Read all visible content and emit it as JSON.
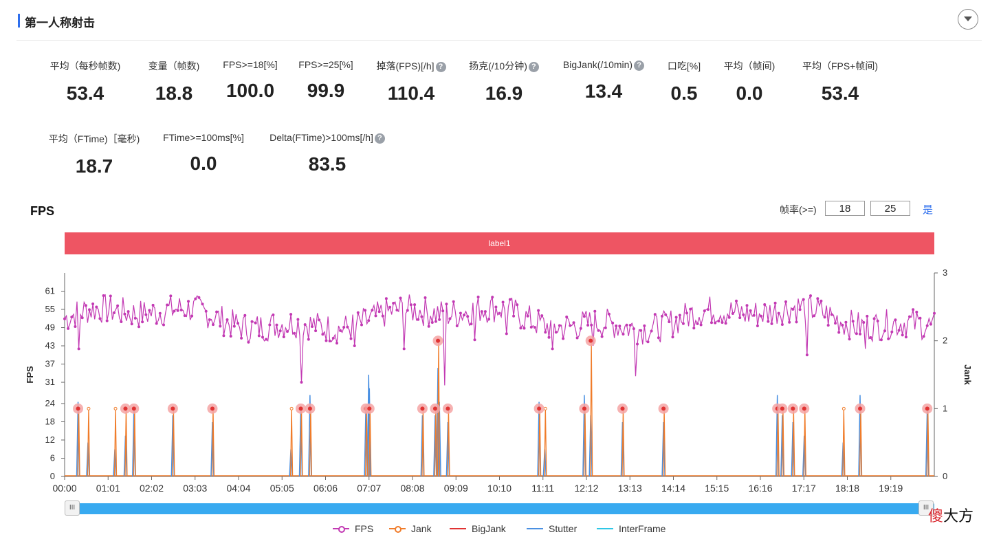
{
  "section": {
    "title": "第一人称射击"
  },
  "stats_row1": [
    {
      "label": "平均（每秒帧数)",
      "value": "53.4",
      "help": false
    },
    {
      "label": "变量（帧数)",
      "value": "18.8",
      "help": false
    },
    {
      "label": "FPS>=18[%]",
      "value": "100.0",
      "help": false
    },
    {
      "label": "FPS>=25[%]",
      "value": "99.9",
      "help": false
    },
    {
      "label": "掉落(FPS)[/h]",
      "value": "110.4",
      "help": true
    },
    {
      "label": "扬克(/10分钟)",
      "value": "16.9",
      "help": true
    },
    {
      "label": "BigJank(/10min)",
      "value": "13.4",
      "help": true
    },
    {
      "label": "口吃[%]",
      "value": "0.5",
      "help": false
    },
    {
      "label": "平均（帧间)",
      "value": "0.0",
      "help": false
    },
    {
      "label": "平均（FPS+帧间)",
      "value": "53.4",
      "help": false
    }
  ],
  "stats_row2": [
    {
      "label": "平均（FTime)［毫秒)",
      "value": "18.7",
      "help": false
    },
    {
      "label": "FTime>=100ms[%]",
      "value": "0.0",
      "help": false
    },
    {
      "label": "Delta(FTime)>100ms[/h]",
      "value": "83.5",
      "help": true
    }
  ],
  "help_glyph": "?",
  "chart_title": "FPS",
  "rate_filter": {
    "label": "帧率(>=)",
    "low": "18",
    "high": "25",
    "confirm": "是"
  },
  "label_bar": {
    "text": "label1",
    "color": "#ee5563"
  },
  "chart_data": {
    "type": "line",
    "xlabel": "",
    "ylabel": "FPS",
    "y2label": "Jank",
    "yticks": [
      0,
      6,
      12,
      18,
      24,
      31,
      37,
      43,
      49,
      55,
      61
    ],
    "ylim": [
      0,
      67
    ],
    "y2ticks": [
      0,
      1,
      2,
      3
    ],
    "y2lim": [
      0,
      3
    ],
    "xticks": [
      "00:00",
      "01:01",
      "02:02",
      "03:03",
      "04:04",
      "05:05",
      "06:06",
      "07:07",
      "08:08",
      "09:09",
      "10:10",
      "11:11",
      "12:12",
      "13:13",
      "14:14",
      "15:15",
      "16:16",
      "17:17",
      "18:18",
      "19:19"
    ],
    "x_range_seconds": [
      0,
      1230
    ],
    "fps_range": [
      41,
      62
    ],
    "fps_dips": [
      {
        "t": 20,
        "fps": 42
      },
      {
        "t": 335,
        "fps": 31
      },
      {
        "t": 410,
        "fps": 43
      },
      {
        "t": 480,
        "fps": 42
      },
      {
        "t": 538,
        "fps": 30
      },
      {
        "t": 580,
        "fps": 45
      },
      {
        "t": 625,
        "fps": 47
      },
      {
        "t": 690,
        "fps": 42
      },
      {
        "t": 748,
        "fps": 43
      },
      {
        "t": 808,
        "fps": 33
      },
      {
        "t": 1050,
        "fps": 40
      },
      {
        "t": 1133,
        "fps": 42
      }
    ],
    "jank_events": [
      {
        "t": 19,
        "value": 1
      },
      {
        "t": 33,
        "value": 1
      },
      {
        "t": 71,
        "value": 1
      },
      {
        "t": 86,
        "value": 1
      },
      {
        "t": 98,
        "value": 1
      },
      {
        "t": 153,
        "value": 1
      },
      {
        "t": 209,
        "value": 1
      },
      {
        "t": 320,
        "value": 1
      },
      {
        "t": 334,
        "value": 1
      },
      {
        "t": 347,
        "value": 1
      },
      {
        "t": 426,
        "value": 1
      },
      {
        "t": 431,
        "value": 1
      },
      {
        "t": 506,
        "value": 1
      },
      {
        "t": 524,
        "value": 1
      },
      {
        "t": 528,
        "value": 2
      },
      {
        "t": 542,
        "value": 1
      },
      {
        "t": 671,
        "value": 1
      },
      {
        "t": 679,
        "value": 1
      },
      {
        "t": 735,
        "value": 1
      },
      {
        "t": 744,
        "value": 2
      },
      {
        "t": 789,
        "value": 1
      },
      {
        "t": 847,
        "value": 1
      },
      {
        "t": 1008,
        "value": 1
      },
      {
        "t": 1015,
        "value": 1
      },
      {
        "t": 1030,
        "value": 1
      },
      {
        "t": 1046,
        "value": 1
      },
      {
        "t": 1101,
        "value": 1
      },
      {
        "t": 1125,
        "value": 1
      },
      {
        "t": 1220,
        "value": 1
      }
    ],
    "bigjank_events": [
      {
        "t": 19
      },
      {
        "t": 86
      },
      {
        "t": 98
      },
      {
        "t": 153
      },
      {
        "t": 209
      },
      {
        "t": 334
      },
      {
        "t": 347
      },
      {
        "t": 426
      },
      {
        "t": 431
      },
      {
        "t": 506
      },
      {
        "t": 524
      },
      {
        "t": 528
      },
      {
        "t": 542
      },
      {
        "t": 671
      },
      {
        "t": 735
      },
      {
        "t": 744
      },
      {
        "t": 789
      },
      {
        "t": 847
      },
      {
        "t": 1008
      },
      {
        "t": 1015
      },
      {
        "t": 1030
      },
      {
        "t": 1046
      },
      {
        "t": 1125
      },
      {
        "t": 1220
      }
    ],
    "stutter_events": [
      {
        "t": 19,
        "value": 1.1
      },
      {
        "t": 33,
        "value": 0.5
      },
      {
        "t": 71,
        "value": 0.4
      },
      {
        "t": 86,
        "value": 0.6
      },
      {
        "t": 98,
        "value": 1.0
      },
      {
        "t": 153,
        "value": 0.9
      },
      {
        "t": 209,
        "value": 0.8
      },
      {
        "t": 320,
        "value": 0.4
      },
      {
        "t": 334,
        "value": 1.0
      },
      {
        "t": 347,
        "value": 1.2
      },
      {
        "t": 426,
        "value": 1.0
      },
      {
        "t": 430,
        "value": 1.5
      },
      {
        "t": 431,
        "value": 1.3
      },
      {
        "t": 506,
        "value": 0.9
      },
      {
        "t": 524,
        "value": 0.9
      },
      {
        "t": 528,
        "value": 1.6
      },
      {
        "t": 530,
        "value": 1.1
      },
      {
        "t": 542,
        "value": 0.8
      },
      {
        "t": 671,
        "value": 1.1
      },
      {
        "t": 679,
        "value": 0.4
      },
      {
        "t": 735,
        "value": 1.2
      },
      {
        "t": 744,
        "value": 0.9
      },
      {
        "t": 789,
        "value": 0.8
      },
      {
        "t": 847,
        "value": 0.8
      },
      {
        "t": 1008,
        "value": 1.2
      },
      {
        "t": 1015,
        "value": 0.9
      },
      {
        "t": 1030,
        "value": 0.8
      },
      {
        "t": 1046,
        "value": 0.6
      },
      {
        "t": 1101,
        "value": 0.5
      },
      {
        "t": 1125,
        "value": 1.2
      },
      {
        "t": 1220,
        "value": 1.0
      }
    ],
    "series": [
      {
        "name": "FPS",
        "color": "#c239b3",
        "axis": "left"
      },
      {
        "name": "Jank",
        "color": "#f07c2a",
        "axis": "right"
      },
      {
        "name": "BigJank",
        "color": "#e03333",
        "axis": "right"
      },
      {
        "name": "Stutter",
        "color": "#4a90e2",
        "axis": "right"
      },
      {
        "name": "InterFrame",
        "color": "#2ec7e6",
        "axis": "right"
      }
    ],
    "legend_position": "bottom",
    "grid": false
  },
  "slider": {
    "start": 0.0,
    "end": 1.0,
    "handle_glyph": "III"
  },
  "watermark": {
    "first": "傻",
    "rest": "大方"
  }
}
